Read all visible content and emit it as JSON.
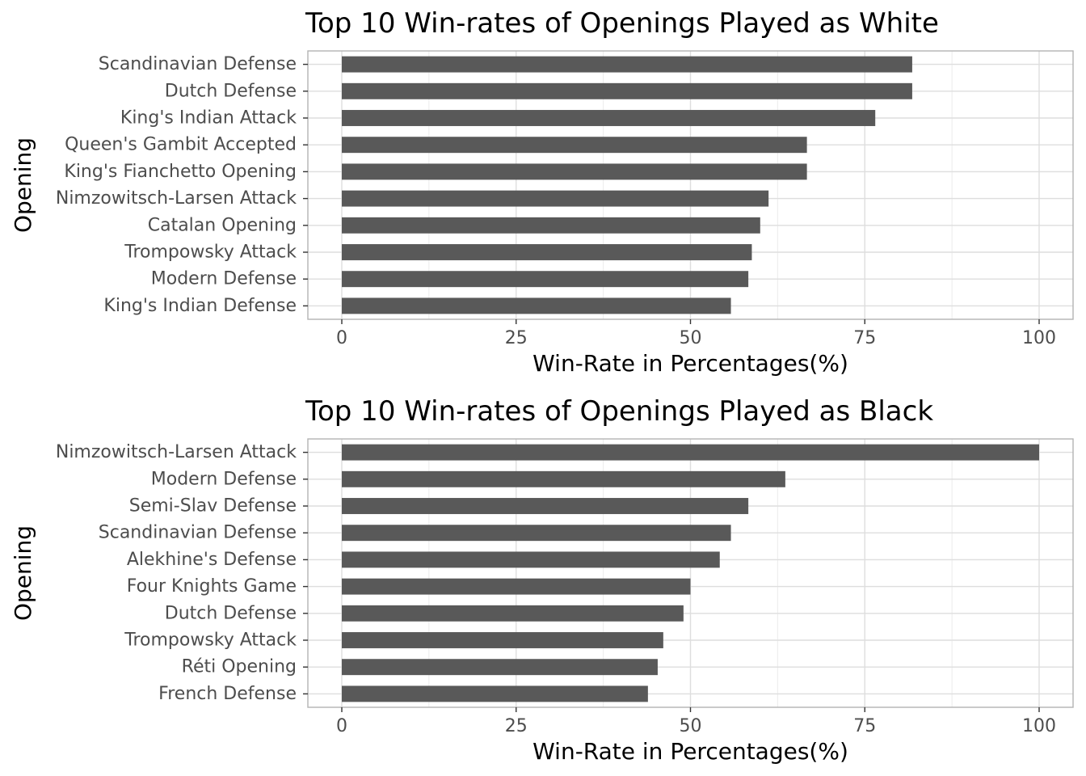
{
  "chart_data": [
    {
      "type": "bar",
      "orientation": "horizontal",
      "title": "Top 10 Win-rates of Openings Played as White",
      "xlabel": "Win-Rate in Percentages(%)",
      "ylabel": "Opening",
      "xlim": [
        0,
        100
      ],
      "xticks": [
        0,
        25,
        50,
        75,
        100
      ],
      "grid": true,
      "bar_color": "#595959",
      "categories": [
        "Scandinavian Defense",
        "Dutch Defense",
        "King's Indian Attack",
        "Queen's Gambit Accepted",
        "King's Fianchetto Opening",
        "Nimzowitsch-Larsen Attack",
        "Catalan Opening",
        "Trompowsky Attack",
        "Modern Defense",
        "King's Indian Defense"
      ],
      "values": [
        81.8,
        81.8,
        76.5,
        66.7,
        66.7,
        61.2,
        60.0,
        58.8,
        58.3,
        55.8
      ]
    },
    {
      "type": "bar",
      "orientation": "horizontal",
      "title": "Top 10 Win-rates of Openings Played as Black",
      "xlabel": "Win-Rate in Percentages(%)",
      "ylabel": "Opening",
      "xlim": [
        0,
        100
      ],
      "xticks": [
        0,
        25,
        50,
        75,
        100
      ],
      "grid": true,
      "bar_color": "#595959",
      "categories": [
        "Nimzowitsch-Larsen Attack",
        "Modern Defense",
        "Semi-Slav Defense",
        "Scandinavian Defense",
        "Alekhine's Defense",
        "Four Knights Game",
        "Dutch Defense",
        "Trompowsky Attack",
        "Réti Opening",
        "French Defense"
      ],
      "values": [
        100,
        63.6,
        58.3,
        55.8,
        54.2,
        50.0,
        49.0,
        46.1,
        45.3,
        43.9
      ]
    }
  ]
}
